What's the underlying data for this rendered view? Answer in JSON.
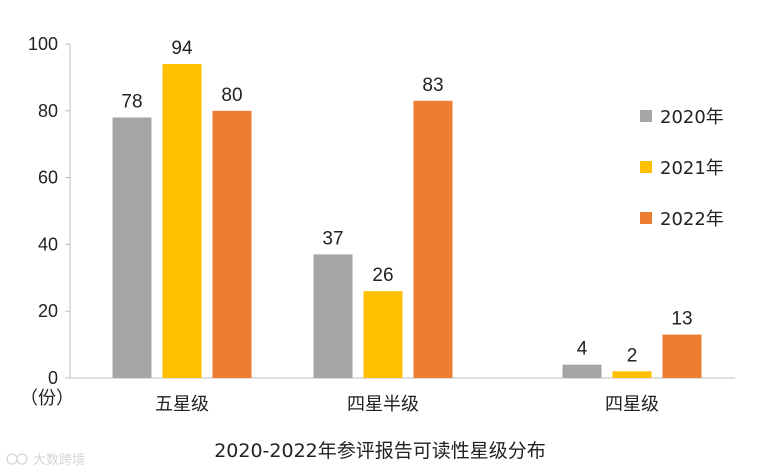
{
  "chart_data": {
    "type": "bar",
    "title": "2020-2022年参评报告可读性星级分布",
    "ylabel": "（份）",
    "categories": [
      "五星级",
      "四星半级",
      "四星级"
    ],
    "yticks": [
      0,
      20,
      40,
      60,
      80,
      100
    ],
    "ylim": [
      0,
      100
    ],
    "grid": false,
    "legend_position": "right",
    "series": [
      {
        "name": "2020年",
        "color": "#a5a5a5",
        "values": [
          78,
          37,
          4
        ]
      },
      {
        "name": "2021年",
        "color": "#ffc000",
        "values": [
          94,
          26,
          2
        ]
      },
      {
        "name": "2022年",
        "color": "#ed7d31",
        "values": [
          80,
          83,
          13
        ]
      }
    ]
  },
  "watermark": {
    "icon": "logo-icon",
    "text": "大数跨境"
  }
}
